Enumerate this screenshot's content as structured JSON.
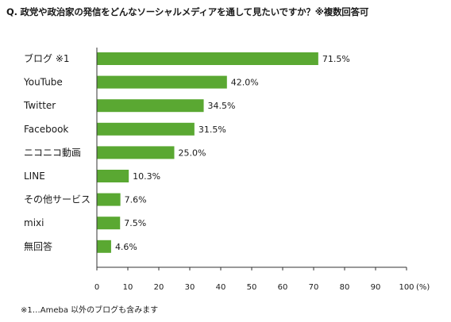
{
  "page_title": "Q. 政党や政治家の発信をどんなソーシャルメディアを通して見たいですか？※複数回答可",
  "footnote": "※1…Ameba 以外のブログも含みます",
  "chart_data": {
    "type": "bar",
    "orientation": "horizontal",
    "title": "Q. 政党や政治家の発信をどんなソーシャルメディアを通して見たいですか？※複数回答可",
    "categories": [
      "ブログ ※1",
      "YouTube",
      "Twitter",
      "Facebook",
      "ニコニコ動画",
      "LINE",
      "その他サービス",
      "mixi",
      "無回答"
    ],
    "values": [
      71.5,
      42.0,
      34.5,
      31.5,
      25.0,
      10.3,
      7.6,
      7.5,
      4.6
    ],
    "value_labels": [
      "71.5%",
      "42.0%",
      "34.5%",
      "31.5%",
      "25.0%",
      "10.3%",
      "7.6%",
      "7.5%",
      "4.6%"
    ],
    "xlim": [
      0,
      100
    ],
    "xticks": [
      0,
      10,
      20,
      30,
      40,
      50,
      60,
      70,
      80,
      90,
      100
    ],
    "x_unit_label": "(%)",
    "grid": false,
    "bar_color": "#5aa832"
  }
}
